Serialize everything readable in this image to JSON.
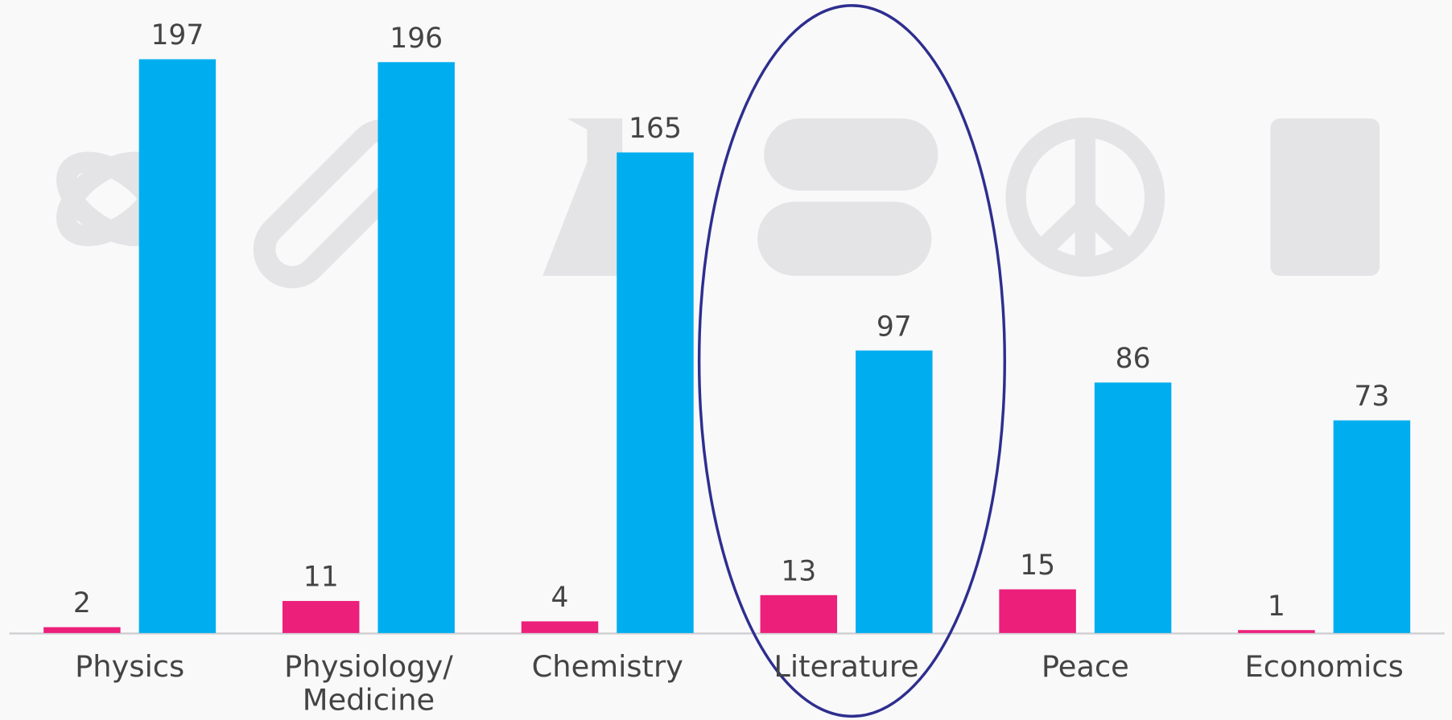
{
  "chart_data": {
    "type": "bar",
    "categories": [
      "Physics",
      "Physiology/\nMedicine",
      "Chemistry",
      "Literature",
      "Peace",
      "Economics"
    ],
    "series": [
      {
        "color": "#ec1f7a",
        "values": [
          2,
          11,
          4,
          13,
          15,
          1
        ]
      },
      {
        "color": "#00aeef",
        "values": [
          197,
          196,
          165,
          97,
          86,
          73
        ]
      }
    ]
  }
}
